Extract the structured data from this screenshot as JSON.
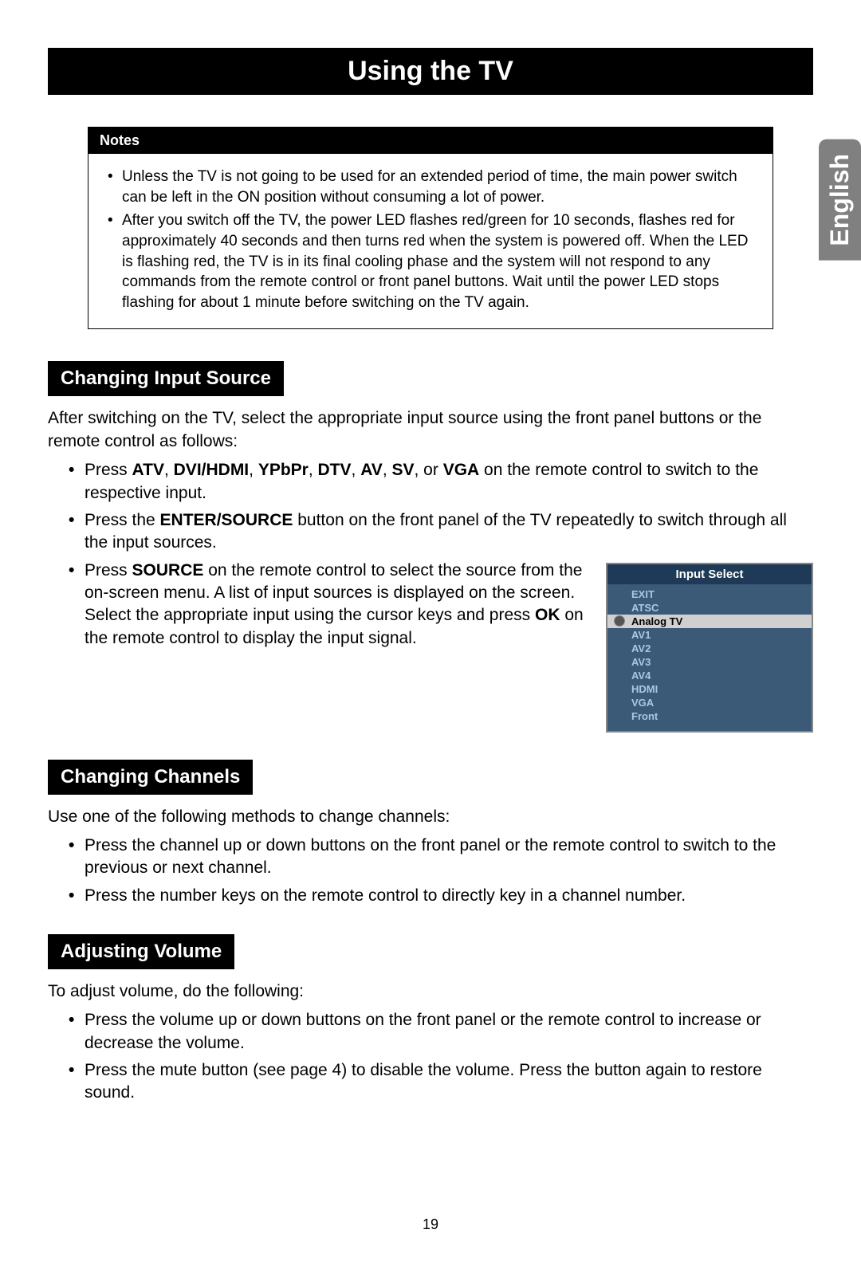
{
  "page_title": "Using the TV",
  "side_tab": "English",
  "notes": {
    "header": "Notes",
    "items": [
      "Unless the TV is not going to be used for an extended period of time, the main power switch can be left in the ON position without consuming a lot of power.",
      "After you switch off the TV, the power LED flashes red/green for 10 seconds, flashes red for approximately 40 seconds and then turns red when the system is powered off. When the LED is flashing red, the TV is in its final cooling phase and the system will not respond to any commands from the remote control or front panel buttons. Wait until the power LED stops flashing for about 1 minute before switching on the TV again."
    ]
  },
  "sections": {
    "input_source": {
      "heading": "Changing Input Source",
      "intro": "After switching on the TV, select the appropriate input source using the front panel buttons or the remote control as follows:",
      "b1_pre": "Press ",
      "b1_k1": "ATV",
      "b1_s1": ", ",
      "b1_k2": "DVI/HDMI",
      "b1_s2": ", ",
      "b1_k3": "YPbPr",
      "b1_s3": ", ",
      "b1_k4": "DTV",
      "b1_s4": ", ",
      "b1_k5": "AV",
      "b1_s5": ", ",
      "b1_k6": "SV",
      "b1_s6": ", or ",
      "b1_k7": "VGA",
      "b1_post": " on the remote control to switch to the respective input.",
      "b2_pre": "Press the ",
      "b2_key": "ENTER/SOURCE",
      "b2_post": " button on the front panel of the TV repeatedly to switch through all the input sources.",
      "b3_pre": "Press ",
      "b3_key1": "SOURCE",
      "b3_mid": " on the remote control to select the source from the on-screen menu. A list of input sources is displayed on the screen. Select the appropriate input using the cursor keys and press ",
      "b3_key2": "OK",
      "b3_post": " on the remote control to display the input signal."
    },
    "channels": {
      "heading": "Changing Channels",
      "intro": "Use one of the following methods to change channels:",
      "bullets": [
        "Press the channel up or down buttons on the front panel or the remote control to switch to the previous or next channel.",
        "Press the number keys on the remote control to directly key in a channel number."
      ]
    },
    "volume": {
      "heading": "Adjusting Volume",
      "intro": "To adjust volume, do the following:",
      "bullets": [
        "Press the volume up or down buttons on the front panel or the remote control to increase or decrease the volume.",
        "Press the mute button (see page 4) to disable the volume. Press the button again to restore sound."
      ]
    }
  },
  "input_select_menu": {
    "title": "Input Select",
    "items": [
      "EXIT",
      "ATSC",
      "Analog   TV",
      "AV1",
      "AV2",
      "AV3",
      "AV4",
      "HDMI",
      "VGA",
      "Front"
    ],
    "selected_index": 2,
    "colors": {
      "bg": "#3b5a78",
      "title_bg": "#1e3a56",
      "item_text": "#a9c8e6",
      "selected_bg": "#d0d0d0",
      "selected_text": "#000000"
    }
  },
  "page_number": "19"
}
